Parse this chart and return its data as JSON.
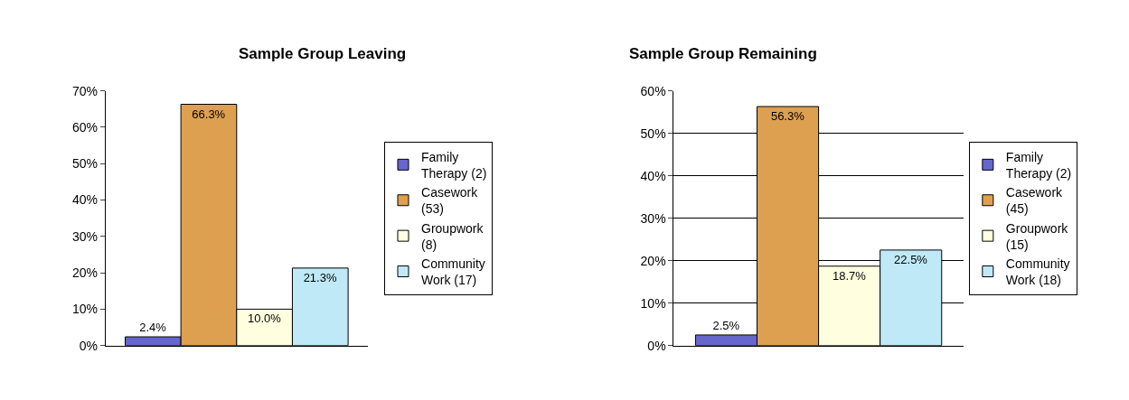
{
  "chart_data": [
    {
      "type": "bar",
      "title": "Sample Group Leaving",
      "categories": [
        null
      ],
      "ylim": [
        0,
        70
      ],
      "yticks": [
        {
          "value": 0,
          "label": "0%"
        },
        {
          "value": 10,
          "label": "10%"
        },
        {
          "value": 20,
          "label": "20%"
        },
        {
          "value": 30,
          "label": "30%"
        },
        {
          "value": 40,
          "label": "40%"
        },
        {
          "value": 50,
          "label": "50%"
        },
        {
          "value": 60,
          "label": "60%"
        },
        {
          "value": 70,
          "label": "70%"
        }
      ],
      "grid": false,
      "legend": "right",
      "series": [
        {
          "name": "Family Therapy (2)",
          "color": "#6666cc",
          "values": [
            2.4
          ],
          "value_labels": [
            "2.4%"
          ]
        },
        {
          "name": "Casework (53)",
          "color": "#dda050",
          "values": [
            66.3
          ],
          "value_labels": [
            "66.3%"
          ]
        },
        {
          "name": "Groupwork (8)",
          "color": "#ffffe0",
          "values": [
            10.0
          ],
          "value_labels": [
            "10.0%"
          ]
        },
        {
          "name": "Community Work (17)",
          "color": "#bfe9f7",
          "values": [
            21.3
          ],
          "value_labels": [
            "21.3%"
          ]
        }
      ]
    },
    {
      "type": "bar",
      "title": "Sample Group Remaining",
      "categories": [
        null
      ],
      "ylim": [
        0,
        60
      ],
      "yticks": [
        {
          "value": 0,
          "label": "0%"
        },
        {
          "value": 10,
          "label": "10%"
        },
        {
          "value": 20,
          "label": "20%"
        },
        {
          "value": 30,
          "label": "30%"
        },
        {
          "value": 40,
          "label": "40%"
        },
        {
          "value": 50,
          "label": "50%"
        },
        {
          "value": 60,
          "label": "60%"
        }
      ],
      "grid": "y",
      "legend": "right",
      "series": [
        {
          "name": "Family Therapy (2)",
          "color": "#6666cc",
          "values": [
            2.5
          ],
          "value_labels": [
            "2.5%"
          ]
        },
        {
          "name": "Casework (45)",
          "color": "#dda050",
          "values": [
            56.3
          ],
          "value_labels": [
            "56.3%"
          ]
        },
        {
          "name": "Groupwork (15)",
          "color": "#ffffe0",
          "values": [
            18.7
          ],
          "value_labels": [
            "18.7%"
          ]
        },
        {
          "name": "Community Work (18)",
          "color": "#bfe9f7",
          "values": [
            22.5
          ],
          "value_labels": [
            "22.5%"
          ]
        }
      ]
    }
  ]
}
